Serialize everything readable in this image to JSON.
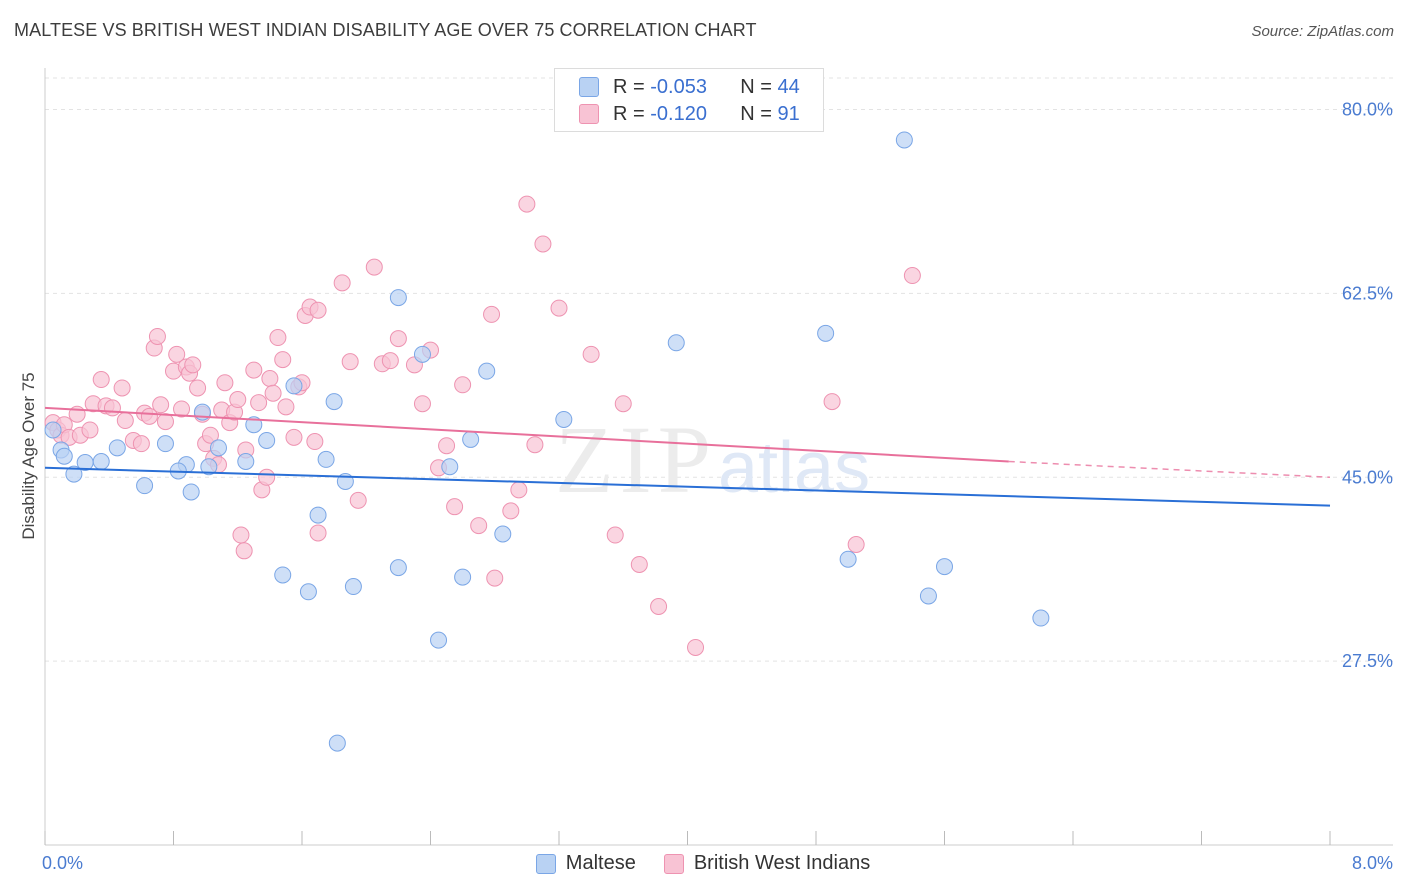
{
  "title": "MALTESE VS BRITISH WEST INDIAN DISABILITY AGE OVER 75 CORRELATION CHART",
  "source": "Source: ZipAtlas.com",
  "watermark": {
    "zip": "ZIP",
    "atlas": "atlas"
  },
  "legend": {
    "rows": [
      {
        "r_label": "R =",
        "r_value": "-0.053",
        "n_label": "N =",
        "n_value": "44"
      },
      {
        "r_label": "R =",
        "r_value": "-0.120",
        "n_label": "N =",
        "n_value": "91"
      }
    ]
  },
  "bottom_legend": {
    "items": [
      "Maltese",
      "British West Indians"
    ]
  },
  "colors": {
    "maltese_fill": "#b9d2f3",
    "maltese_stroke": "#7aa6e6",
    "maltese_line": "#2a6fd6",
    "bwi_fill": "#f8c3d4",
    "bwi_stroke": "#ee93b1",
    "bwi_line": "#e8709b",
    "tick_label": "#4a7bd0",
    "grid": "#e3e3e3"
  },
  "chart_data": {
    "type": "scatter",
    "title": "MALTESE VS BRITISH WEST INDIAN DISABILITY AGE OVER 75 CORRELATION CHART",
    "xlabel": "",
    "ylabel": "Disability Age Over 75",
    "xlim": [
      0,
      8
    ],
    "ylim": [
      10,
      83
    ],
    "x_tick_labels": [
      "0.0%",
      "8.0%"
    ],
    "y_ticks": [
      27.5,
      45.0,
      62.5,
      80.0
    ],
    "y_tick_labels": [
      "27.5%",
      "45.0%",
      "62.5%",
      "80.0%"
    ],
    "grid": "horizontal dashed",
    "series": [
      {
        "name": "Maltese",
        "r": -0.053,
        "n": 44,
        "trend": {
          "x": [
            0.0,
            8.0
          ],
          "y": [
            45.9,
            42.3
          ]
        },
        "points": [
          [
            0.05,
            49.5
          ],
          [
            0.1,
            47.6
          ],
          [
            0.12,
            47.0
          ],
          [
            0.18,
            45.3
          ],
          [
            0.25,
            46.4
          ],
          [
            0.35,
            46.5
          ],
          [
            0.45,
            47.8
          ],
          [
            0.62,
            44.2
          ],
          [
            0.88,
            46.2
          ],
          [
            0.75,
            48.2
          ],
          [
            0.83,
            45.6
          ],
          [
            0.91,
            43.6
          ],
          [
            0.98,
            51.2
          ],
          [
            1.08,
            47.8
          ],
          [
            1.3,
            50.0
          ],
          [
            1.38,
            48.5
          ],
          [
            1.25,
            46.5
          ],
          [
            1.7,
            41.4
          ],
          [
            1.55,
            53.7
          ],
          [
            1.8,
            52.2
          ],
          [
            1.48,
            35.7
          ],
          [
            1.64,
            34.1
          ],
          [
            1.92,
            34.6
          ],
          [
            1.82,
            19.7
          ],
          [
            1.87,
            44.6
          ],
          [
            1.75,
            46.7
          ],
          [
            2.35,
            56.7
          ],
          [
            2.2,
            36.4
          ],
          [
            2.2,
            62.1
          ],
          [
            2.75,
            55.1
          ],
          [
            2.65,
            48.6
          ],
          [
            2.45,
            29.5
          ],
          [
            2.52,
            46.0
          ],
          [
            2.6,
            35.5
          ],
          [
            2.85,
            39.6
          ],
          [
            3.23,
            50.5
          ],
          [
            3.93,
            57.8
          ],
          [
            4.86,
            58.7
          ],
          [
            5.0,
            37.2
          ],
          [
            5.35,
            77.1
          ],
          [
            5.5,
            33.7
          ],
          [
            5.6,
            36.5
          ],
          [
            6.2,
            31.6
          ],
          [
            1.02,
            46.0
          ]
        ]
      },
      {
        "name": "British West Indians",
        "r": -0.12,
        "n": 91,
        "trend": {
          "x": [
            0.0,
            6.0
          ],
          "y": [
            51.6,
            46.5
          ],
          "dashed_to": [
            8.0,
            45.0
          ]
        },
        "points": [
          [
            0.05,
            50.2
          ],
          [
            0.08,
            49.5
          ],
          [
            0.1,
            49.0
          ],
          [
            0.12,
            50.0
          ],
          [
            0.15,
            48.8
          ],
          [
            0.2,
            51.0
          ],
          [
            0.22,
            49.0
          ],
          [
            0.28,
            49.5
          ],
          [
            0.3,
            52.0
          ],
          [
            0.35,
            54.3
          ],
          [
            0.38,
            51.8
          ],
          [
            0.42,
            51.6
          ],
          [
            0.48,
            53.5
          ],
          [
            0.5,
            50.4
          ],
          [
            0.55,
            48.5
          ],
          [
            0.6,
            48.2
          ],
          [
            0.62,
            51.1
          ],
          [
            0.65,
            50.8
          ],
          [
            0.68,
            57.3
          ],
          [
            0.7,
            58.4
          ],
          [
            0.72,
            51.9
          ],
          [
            0.75,
            50.3
          ],
          [
            0.8,
            55.1
          ],
          [
            0.82,
            56.7
          ],
          [
            0.85,
            51.5
          ],
          [
            0.88,
            55.5
          ],
          [
            0.9,
            54.9
          ],
          [
            0.92,
            55.7
          ],
          [
            0.95,
            53.5
          ],
          [
            0.98,
            51.0
          ],
          [
            1.0,
            48.2
          ],
          [
            1.03,
            49.0
          ],
          [
            1.05,
            46.8
          ],
          [
            1.08,
            46.2
          ],
          [
            1.1,
            51.4
          ],
          [
            1.12,
            54.0
          ],
          [
            1.15,
            50.2
          ],
          [
            1.18,
            51.2
          ],
          [
            1.2,
            52.4
          ],
          [
            1.22,
            39.5
          ],
          [
            1.24,
            38.0
          ],
          [
            1.25,
            47.6
          ],
          [
            1.3,
            55.2
          ],
          [
            1.33,
            52.1
          ],
          [
            1.35,
            43.8
          ],
          [
            1.38,
            45.0
          ],
          [
            1.4,
            54.4
          ],
          [
            1.42,
            53.0
          ],
          [
            1.45,
            58.3
          ],
          [
            1.48,
            56.2
          ],
          [
            1.5,
            51.7
          ],
          [
            1.55,
            48.8
          ],
          [
            1.58,
            53.6
          ],
          [
            1.6,
            54.0
          ],
          [
            1.62,
            60.4
          ],
          [
            1.65,
            61.2
          ],
          [
            1.68,
            48.4
          ],
          [
            1.7,
            60.9
          ],
          [
            1.7,
            39.7
          ],
          [
            1.85,
            63.5
          ],
          [
            1.9,
            56.0
          ],
          [
            1.95,
            42.8
          ],
          [
            2.05,
            65.0
          ],
          [
            2.1,
            55.8
          ],
          [
            2.15,
            56.1
          ],
          [
            2.2,
            58.2
          ],
          [
            2.3,
            55.7
          ],
          [
            2.35,
            52.0
          ],
          [
            2.4,
            57.1
          ],
          [
            2.45,
            45.9
          ],
          [
            2.5,
            48.0
          ],
          [
            2.55,
            42.2
          ],
          [
            2.6,
            53.8
          ],
          [
            2.7,
            40.4
          ],
          [
            2.78,
            60.5
          ],
          [
            2.8,
            35.4
          ],
          [
            2.9,
            41.8
          ],
          [
            2.95,
            43.8
          ],
          [
            3.0,
            71.0
          ],
          [
            3.05,
            48.1
          ],
          [
            3.1,
            67.2
          ],
          [
            3.2,
            61.1
          ],
          [
            3.4,
            56.7
          ],
          [
            3.55,
            39.5
          ],
          [
            3.6,
            52.0
          ],
          [
            3.7,
            36.7
          ],
          [
            3.82,
            32.7
          ],
          [
            4.05,
            28.8
          ],
          [
            4.9,
            52.2
          ],
          [
            5.05,
            38.6
          ],
          [
            5.4,
            64.2
          ]
        ]
      }
    ]
  }
}
